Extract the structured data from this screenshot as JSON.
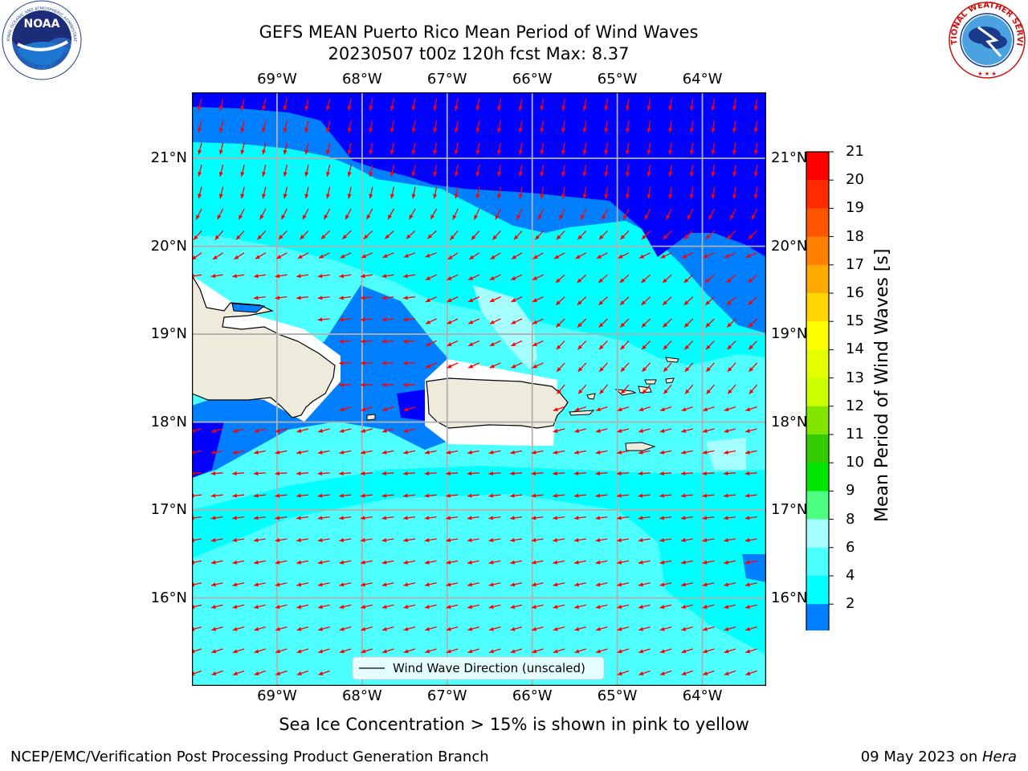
{
  "title": {
    "line1": "GEFS MEAN Puerto Rico Mean Period of Wind Waves",
    "line2": "20230507 t00z 120h fcst   Max: 8.37"
  },
  "map": {
    "lon_range": [
      -70,
      -63.25
    ],
    "lat_range": [
      15,
      21.75
    ],
    "lon_ticks": [
      "69°W",
      "68°W",
      "67°W",
      "66°W",
      "65°W",
      "64°W"
    ],
    "lat_ticks": [
      "21°N",
      "20°N",
      "19°N",
      "18°N",
      "17°N",
      "16°N"
    ],
    "legend_label": "Wind Wave Direction (unscaled)",
    "arrow_color": "#ff0000",
    "land_color": "#efebdc"
  },
  "colorbar": {
    "title": "Mean Period of Wind Waves [s]",
    "labels": [
      "21",
      "20",
      "19",
      "18",
      "17",
      "16",
      "15",
      "14",
      "13",
      "12",
      "11",
      "10",
      "9",
      "8",
      "6",
      "4",
      "2"
    ],
    "colors": [
      "#ff0000",
      "#ff2a00",
      "#ff5500",
      "#ff8000",
      "#ffaa00",
      "#ffd400",
      "#ffff00",
      "#e6ff00",
      "#ccff00",
      "#80e600",
      "#33cc00",
      "#00e600",
      "#4dff80",
      "#a6ffff",
      "#4dffff",
      "#00ffff",
      "#0080ff"
    ],
    "extend_color": "#0000ff"
  },
  "caption": "Sea Ice Concentration > 15% is shown in pink to yellow",
  "footer": {
    "left": "NCEP/EMC/Verification Post Processing Product Generation Branch",
    "right_prefix": "09 May 2023 on ",
    "right_host": "Hera"
  },
  "logos": {
    "noaa_text": "NOAA",
    "noaa_ring": "NATIONAL OCEANIC AND ATMOSPHERIC ADMINISTRATION",
    "noaa_ring_bottom": "U.S. DEPARTMENT OF COMMERCE",
    "nws_ring": "NATIONAL WEATHER SERVICE"
  }
}
